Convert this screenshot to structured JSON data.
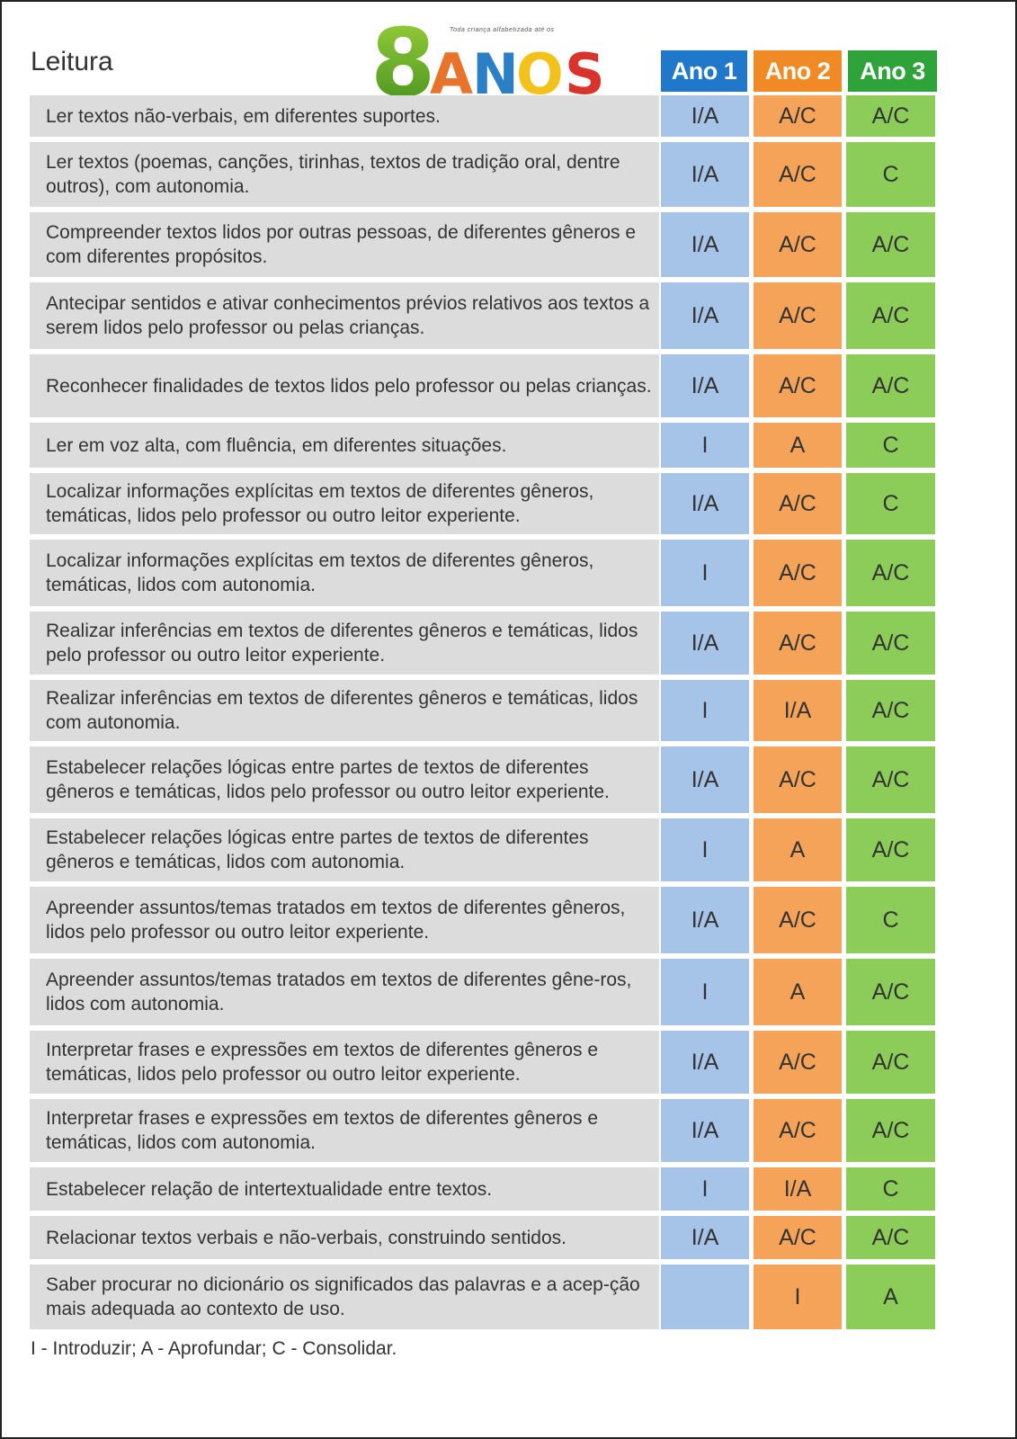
{
  "title": "Leitura",
  "logo": {
    "text": "8ANOS",
    "tagline": "Toda criança alfabetizada até os"
  },
  "headers": [
    "Ano 1",
    "Ano 2",
    "Ano 3"
  ],
  "rows": [
    {
      "text": "Ler textos não-verbais, em diferentes suportes.",
      "ano1": "I/A",
      "ano2": "A/C",
      "ano3": "A/C"
    },
    {
      "text": "Ler textos (poemas, canções, tirinhas, textos de tradição oral, dentre outros), com autonomia.",
      "ano1": "I/A",
      "ano2": "A/C",
      "ano3": "C"
    },
    {
      "text": "Compreender textos lidos por outras pessoas, de diferentes gêneros e com diferentes propósitos.",
      "ano1": "I/A",
      "ano2": "A/C",
      "ano3": "A/C"
    },
    {
      "text": "Antecipar sentidos e ativar conhecimentos prévios relativos aos textos a serem lidos pelo professor ou pelas crianças.",
      "ano1": "I/A",
      "ano2": "A/C",
      "ano3": "A/C"
    },
    {
      "text": "Reconhecer finalidades de textos lidos pelo professor ou pelas crianças.",
      "ano1": "I/A",
      "ano2": "A/C",
      "ano3": "A/C"
    },
    {
      "text": "Ler em voz alta, com fluência, em diferentes situações.",
      "ano1": "I",
      "ano2": "A",
      "ano3": "C"
    },
    {
      "text": "Localizar informações explícitas em textos de diferentes gêneros, temáticas, lidos pelo professor ou outro leitor experiente.",
      "ano1": "I/A",
      "ano2": "A/C",
      "ano3": "C"
    },
    {
      "text": "Localizar informações explícitas em textos de diferentes gêneros, temáticas, lidos com autonomia.",
      "ano1": "I",
      "ano2": "A/C",
      "ano3": "A/C"
    },
    {
      "text": "Realizar inferências em textos de diferentes gêneros e temáticas, lidos pelo professor ou outro leitor experiente.",
      "ano1": "I/A",
      "ano2": "A/C",
      "ano3": "A/C"
    },
    {
      "text": "Realizar inferências em textos de diferentes gêneros e temáticas, lidos com autonomia.",
      "ano1": "I",
      "ano2": "I/A",
      "ano3": "A/C"
    },
    {
      "text": "Estabelecer relações lógicas entre partes de textos de diferentes gêneros e temáticas, lidos pelo professor ou outro leitor experiente.",
      "ano1": "I/A",
      "ano2": "A/C",
      "ano3": "A/C"
    },
    {
      "text": "Estabelecer relações lógicas entre partes de textos de diferentes gêneros e temáticas, lidos com autonomia.",
      "ano1": "I",
      "ano2": "A",
      "ano3": "A/C"
    },
    {
      "text": "Apreender assuntos/temas tratados em textos de diferentes gêneros, lidos pelo professor ou outro leitor experiente.",
      "ano1": "I/A",
      "ano2": "A/C",
      "ano3": "C"
    },
    {
      "text": "Apreender assuntos/temas tratados em textos de diferentes gêne-ros, lidos com autonomia.",
      "ano1": "I",
      "ano2": "A",
      "ano3": "A/C"
    },
    {
      "text": "Interpretar frases e expressões em textos de diferentes gêneros e temáticas, lidos pelo professor ou outro leitor experiente.",
      "ano1": "I/A",
      "ano2": "A/C",
      "ano3": "A/C"
    },
    {
      "text": "Interpretar frases e expressões em textos de diferentes gêneros e temáticas, lidos com autonomia.",
      "ano1": "I/A",
      "ano2": "A/C",
      "ano3": "A/C"
    },
    {
      "text": "Estabelecer relação de intertextualidade entre textos.",
      "ano1": "I",
      "ano2": "I/A",
      "ano3": "C"
    },
    {
      "text": "Relacionar textos verbais e não-verbais, construindo sentidos.",
      "ano1": "I/A",
      "ano2": "A/C",
      "ano3": "A/C"
    },
    {
      "text": "Saber procurar no dicionário os significados das palavras e a acep-ção mais adequada ao contexto de uso.",
      "ano1": "",
      "ano2": "I",
      "ano3": "A"
    }
  ],
  "legend": "I - Introduzir; A - Aprofundar; C - Consolidar."
}
